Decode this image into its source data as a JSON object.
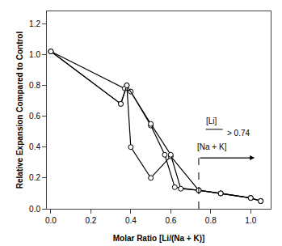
{
  "chart_data": {
    "type": "line",
    "x_label": "Molar Ratio [Li/(Na + K)]",
    "y_label": "Relative Expansion Compared to Control",
    "series": [
      {
        "color": "#000000",
        "marker": "circle",
        "line_style": "solid",
        "x": [
          0.0,
          0.35,
          0.38,
          0.4,
          0.5,
          0.6,
          0.74,
          0.85,
          1.0,
          1.05
        ],
        "values": [
          1.02,
          0.68,
          0.8,
          0.4,
          0.2,
          0.34,
          0.12,
          0.1,
          0.07,
          0.05
        ]
      },
      {
        "color": "#000000",
        "marker": "circle",
        "line_style": "solid",
        "x": [
          0.0,
          0.37,
          0.4,
          0.5,
          0.57,
          0.62,
          0.74,
          0.85,
          1.0,
          1.05
        ],
        "values": [
          1.02,
          0.78,
          0.76,
          0.54,
          0.35,
          0.14,
          0.12,
          0.1,
          0.07,
          0.05
        ]
      },
      {
        "color": "#000000",
        "marker": "circle",
        "line_style": "solid",
        "x": [
          0.0,
          0.35,
          0.38,
          0.5,
          0.6,
          0.65,
          0.74,
          0.85,
          1.0,
          1.05
        ],
        "values": [
          1.02,
          0.68,
          0.8,
          0.55,
          0.35,
          0.13,
          0.12,
          0.1,
          0.07,
          0.05
        ]
      }
    ],
    "xlim": [
      -0.02,
      1.1
    ],
    "ylim": [
      0.0,
      1.28
    ],
    "xticks": [
      {
        "value": 0,
        "label": "0.0"
      },
      0.2,
      0.4,
      0.6,
      0.8,
      {
        "value": 1,
        "label": "1.0"
      }
    ],
    "yticks": [
      {
        "value": 0,
        "label": "0.0"
      },
      0.2,
      0.4,
      0.6,
      0.8,
      {
        "value": 1,
        "label": "1.0"
      },
      1.2
    ],
    "grid": false,
    "lines": [
      {
        "x": [
          0.74,
          0.74
        ],
        "y": [
          0.0,
          0.33
        ],
        "line_style": "dashed",
        "color": "#000000"
      },
      {
        "x": [
          0.775,
          0.86
        ],
        "y": [
          0.515,
          0.515
        ],
        "line_style": "solid",
        "color": "#000000"
      }
    ],
    "arrows": [
      {
        "x_start": 0.74,
        "x_end": 1.02,
        "y": 0.33,
        "color": "#000000"
      }
    ],
    "annotations": [
      {
        "text": "[Li]",
        "x": 0.805,
        "y": 0.53
      },
      {
        "text": "[Na + K]",
        "x": 0.805,
        "y": 0.44
      },
      {
        "text": "> 0.74",
        "x": 0.875,
        "y": 0.49
      }
    ]
  }
}
